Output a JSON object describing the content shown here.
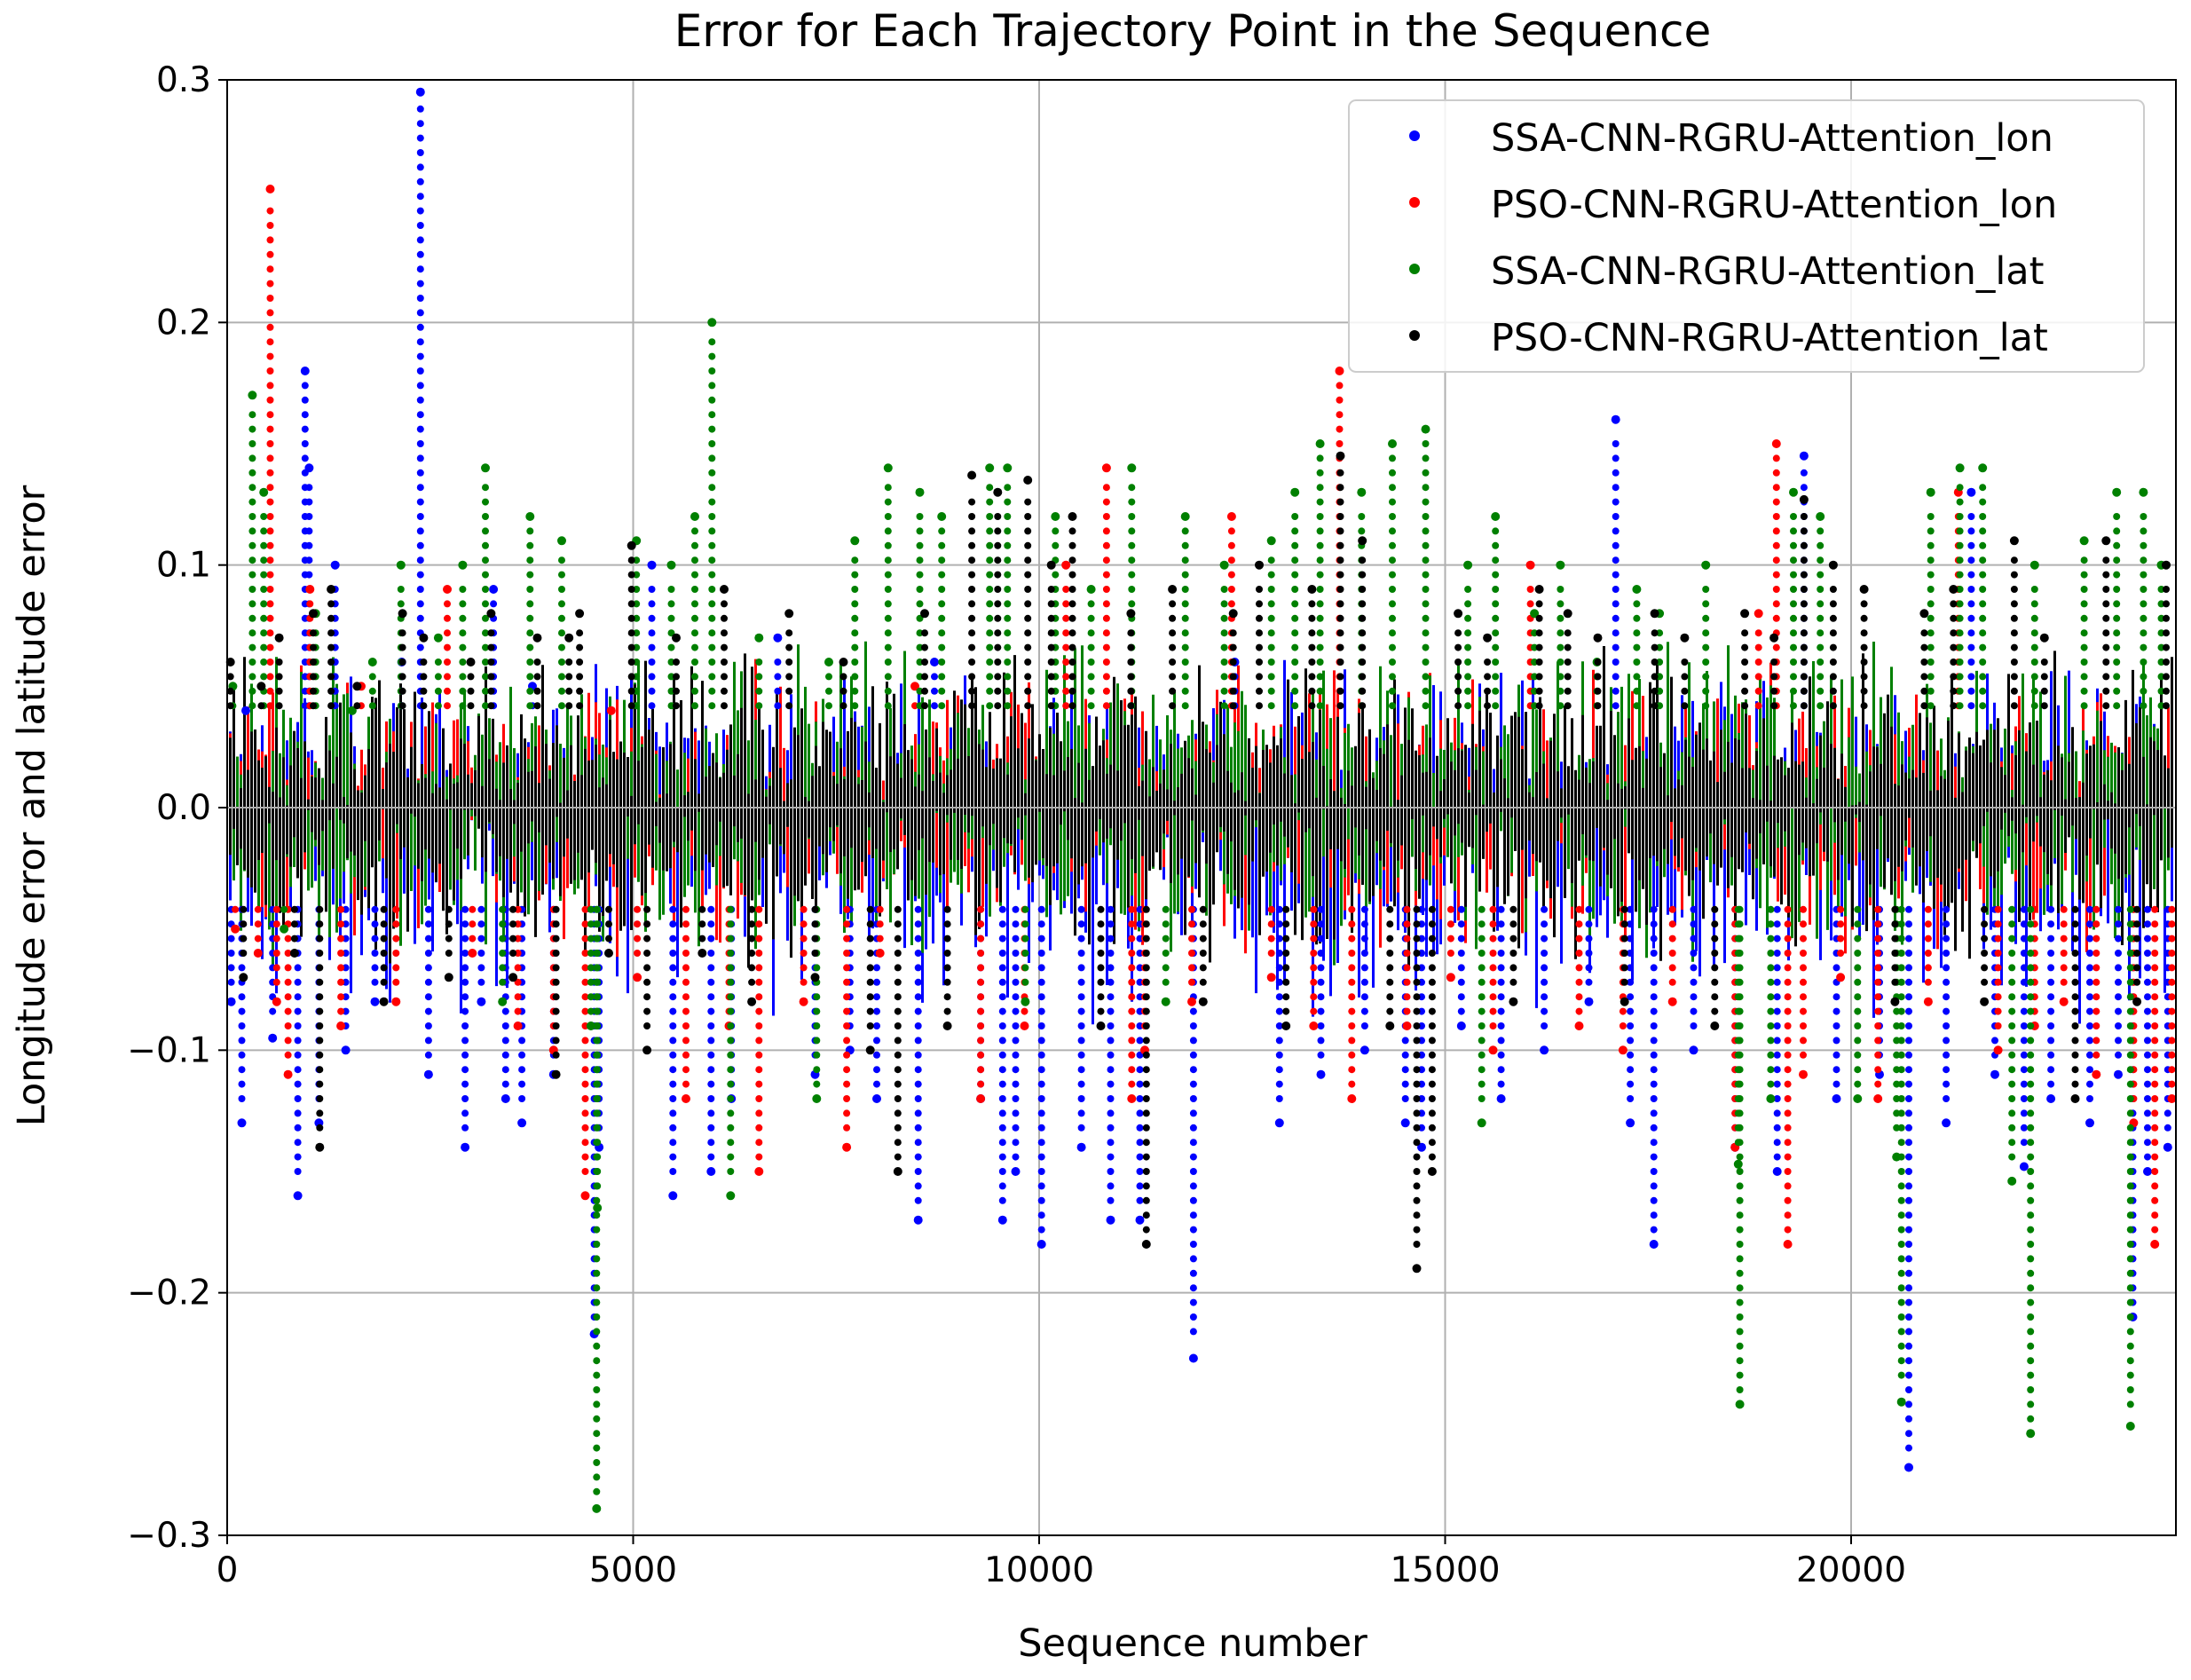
{
  "chart_data": {
    "type": "scatter",
    "title": "Error for Each Trajectory Point in the Sequence",
    "xlabel": "Sequence number",
    "ylabel": "Longitude error and latitude error",
    "xlim": [
      0,
      24000
    ],
    "ylim": [
      -0.3,
      0.3
    ],
    "x_ticks": [
      0,
      5000,
      10000,
      15000,
      20000
    ],
    "x_tick_labels": [
      "0",
      "5000",
      "10000",
      "15000",
      "20000"
    ],
    "y_ticks": [
      -0.3,
      -0.2,
      -0.1,
      0.0,
      0.1,
      0.2,
      0.3
    ],
    "y_tick_labels": [
      "−0.3",
      "−0.2",
      "−0.1",
      "0.0",
      "0.1",
      "0.2",
      "0.3"
    ],
    "grid": true,
    "legend_position": "top-right",
    "series": [
      {
        "name": "SSA-CNN-RGRU-Attention_lon",
        "color": "#0000ff",
        "marker": "point",
        "x": [
          50,
          180,
          230,
          560,
          870,
          960,
          1010,
          1130,
          1330,
          1460,
          1820,
          2150,
          2380,
          2480,
          2930,
          3130,
          3280,
          3430,
          3630,
          3760,
          4020,
          4520,
          4580,
          5230,
          5490,
          5960,
          6210,
          6780,
          7240,
          7670,
          8000,
          8510,
          8710,
          9280,
          9550,
          9710,
          10030,
          10520,
          10880,
          11240,
          11900,
          12410,
          12960,
          13470,
          14010,
          14510,
          14710,
          15200,
          15690,
          16220,
          16770,
          17100,
          17280,
          17570,
          18060,
          18570,
          19090,
          19420,
          19820,
          20350,
          20710,
          21170,
          21480,
          21770,
          22130,
          22460,
          22940,
          23290,
          23470,
          23650,
          23900
        ],
        "y": [
          -0.08,
          -0.13,
          0.04,
          -0.095,
          -0.16,
          0.18,
          0.14,
          -0.13,
          0.1,
          -0.1,
          -0.08,
          0.06,
          0.295,
          -0.11,
          -0.14,
          -0.08,
          0.09,
          -0.12,
          -0.13,
          0.05,
          -0.11,
          -0.217,
          -0.14,
          0.1,
          -0.16,
          -0.15,
          -0.12,
          0.07,
          -0.11,
          -0.1,
          -0.12,
          -0.17,
          0.06,
          -0.12,
          -0.17,
          -0.15,
          -0.18,
          -0.14,
          -0.17,
          -0.17,
          -0.227,
          0.06,
          -0.13,
          -0.11,
          -0.1,
          -0.13,
          -0.14,
          -0.09,
          -0.12,
          -0.1,
          -0.08,
          0.16,
          -0.13,
          -0.18,
          -0.1,
          -0.14,
          -0.15,
          0.145,
          -0.12,
          -0.11,
          -0.272,
          -0.13,
          0.13,
          -0.11,
          -0.148,
          -0.12,
          -0.13,
          -0.11,
          -0.21,
          -0.15,
          -0.14
        ]
      },
      {
        "name": "PSO-CNN-RGRU-Attention_lon",
        "color": "#ff0000",
        "marker": "point",
        "x": [
          100,
          380,
          530,
          610,
          750,
          1020,
          1400,
          1650,
          2080,
          2710,
          3020,
          3580,
          4020,
          4410,
          4730,
          5050,
          5650,
          6180,
          6550,
          7100,
          7630,
          8040,
          8470,
          9280,
          9820,
          10330,
          10830,
          11140,
          11300,
          11880,
          12370,
          12860,
          13380,
          13700,
          13850,
          14530,
          15070,
          15590,
          16050,
          16650,
          17190,
          17800,
          18570,
          18860,
          19080,
          19220,
          19410,
          19870,
          20330,
          20950,
          21320,
          21810,
          22260,
          22620,
          23020,
          23480,
          23740,
          23950
        ],
        "y": [
          -0.05,
          -0.06,
          0.255,
          -0.08,
          -0.11,
          0.09,
          -0.09,
          0.05,
          -0.08,
          0.09,
          -0.06,
          -0.09,
          -0.1,
          -0.16,
          0.04,
          -0.07,
          -0.12,
          -0.09,
          -0.15,
          -0.08,
          -0.14,
          -0.06,
          0.05,
          -0.12,
          -0.09,
          0.1,
          0.14,
          -0.12,
          -0.1,
          -0.08,
          0.12,
          -0.07,
          -0.09,
          0.18,
          -0.12,
          -0.09,
          -0.07,
          -0.1,
          0.1,
          -0.09,
          -0.1,
          -0.08,
          -0.14,
          0.08,
          0.15,
          -0.18,
          -0.11,
          -0.07,
          -0.12,
          -0.08,
          0.13,
          -0.1,
          -0.09,
          -0.08,
          -0.11,
          -0.13,
          -0.18,
          -0.12
        ]
      },
      {
        "name": "SSA-CNN-RGRU-Attention_lat",
        "color": "#008000",
        "marker": "point",
        "x": [
          70,
          310,
          450,
          700,
          1090,
          1540,
          1790,
          2140,
          2600,
          2900,
          3180,
          3390,
          3730,
          4120,
          4480,
          4550,
          4560,
          5040,
          5470,
          5760,
          5970,
          6200,
          6550,
          7260,
          7410,
          7730,
          8140,
          8530,
          8800,
          9390,
          9610,
          9830,
          10200,
          10640,
          11140,
          11560,
          11800,
          12280,
          12860,
          13150,
          13460,
          13970,
          14350,
          14760,
          15280,
          15450,
          15620,
          16100,
          16420,
          16870,
          17360,
          17640,
          18210,
          18610,
          18630,
          19010,
          19290,
          19620,
          20080,
          20560,
          20620,
          20980,
          21340,
          21620,
          21980,
          22210,
          22260,
          22870,
          23270,
          23440,
          23600,
          23820
        ],
        "y": [
          0.05,
          0.17,
          0.13,
          -0.05,
          0.08,
          0.04,
          0.06,
          0.1,
          0.07,
          0.1,
          0.14,
          -0.08,
          0.12,
          0.11,
          -0.09,
          -0.289,
          -0.165,
          0.11,
          0.1,
          0.12,
          0.2,
          -0.16,
          0.07,
          -0.12,
          0.06,
          0.11,
          0.14,
          0.13,
          0.12,
          0.14,
          0.14,
          -0.08,
          0.12,
          0.09,
          0.14,
          -0.08,
          0.12,
          0.1,
          0.11,
          0.13,
          0.15,
          0.13,
          0.15,
          0.156,
          0.1,
          -0.13,
          0.12,
          0.08,
          0.1,
          0.06,
          0.09,
          0.08,
          0.1,
          -0.147,
          -0.246,
          -0.12,
          0.13,
          0.12,
          -0.12,
          -0.144,
          -0.245,
          0.13,
          0.14,
          0.14,
          -0.154,
          -0.258,
          0.1,
          0.11,
          0.13,
          -0.255,
          0.13,
          0.1
        ]
      },
      {
        "name": "PSO-CNN-RGRU-Attention_lat",
        "color": "#000000",
        "marker": "point",
        "x": [
          40,
          200,
          420,
          640,
          830,
          1060,
          1140,
          1280,
          1600,
          1930,
          2160,
          2420,
          2730,
          3000,
          3250,
          3520,
          3820,
          4050,
          4210,
          4340,
          4700,
          4980,
          5170,
          5530,
          5850,
          6120,
          6460,
          6920,
          7240,
          7590,
          7920,
          8260,
          8590,
          8870,
          9170,
          9490,
          9860,
          10150,
          10410,
          10760,
          11130,
          11320,
          11640,
          12020,
          12390,
          12710,
          13040,
          13360,
          13710,
          13980,
          14320,
          14650,
          14840,
          15160,
          15520,
          15840,
          16160,
          16510,
          16880,
          17210,
          17580,
          17950,
          18320,
          18690,
          19050,
          19420,
          19780,
          20160,
          20540,
          20900,
          21260,
          21640,
          22010,
          22380,
          22760,
          23140,
          23520,
          23880
        ],
        "y": [
          0.06,
          -0.07,
          0.05,
          0.07,
          -0.06,
          0.08,
          -0.14,
          0.09,
          0.05,
          -0.08,
          0.08,
          0.07,
          -0.07,
          0.06,
          0.08,
          -0.07,
          0.07,
          -0.11,
          0.07,
          0.08,
          -0.06,
          0.108,
          -0.1,
          0.07,
          -0.06,
          0.09,
          -0.08,
          0.08,
          -0.07,
          0.06,
          -0.1,
          -0.15,
          0.08,
          -0.09,
          0.137,
          0.13,
          0.135,
          0.1,
          0.12,
          -0.09,
          0.08,
          -0.18,
          0.09,
          -0.08,
          0.08,
          0.1,
          -0.09,
          0.09,
          0.145,
          0.11,
          -0.09,
          -0.19,
          -0.15,
          0.08,
          0.07,
          -0.08,
          0.09,
          0.08,
          0.07,
          -0.08,
          0.08,
          0.07,
          -0.09,
          0.08,
          0.07,
          0.127,
          0.1,
          0.09,
          -0.08,
          0.08,
          0.09,
          -0.08,
          0.11,
          0.07,
          -0.12,
          0.11,
          -0.08,
          0.1
        ]
      }
    ]
  }
}
